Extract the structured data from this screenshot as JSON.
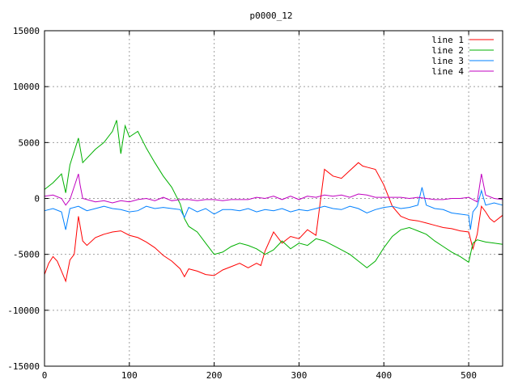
{
  "chart_data": {
    "type": "line",
    "title": "p0000_12",
    "xlabel": "",
    "ylabel": "",
    "xlim": [
      0,
      540
    ],
    "ylim": [
      -15000,
      15000
    ],
    "xticks": [
      0,
      100,
      200,
      300,
      400,
      500
    ],
    "yticks": [
      -15000,
      -10000,
      -5000,
      0,
      5000,
      10000,
      15000
    ],
    "grid": true,
    "legend_position": "top-right",
    "series": [
      {
        "name": "line 1",
        "color": "#ff0000",
        "x": [
          0,
          5,
          10,
          15,
          20,
          25,
          30,
          35,
          40,
          45,
          50,
          60,
          70,
          80,
          90,
          100,
          110,
          120,
          130,
          140,
          150,
          160,
          165,
          170,
          180,
          190,
          200,
          210,
          220,
          230,
          240,
          250,
          255,
          260,
          270,
          280,
          290,
          300,
          310,
          320,
          330,
          340,
          350,
          360,
          370,
          375,
          380,
          390,
          400,
          410,
          420,
          430,
          440,
          450,
          460,
          470,
          480,
          490,
          500,
          505,
          510,
          515,
          520,
          525,
          530,
          540
        ],
        "y": [
          -6800,
          -5800,
          -5200,
          -5600,
          -6500,
          -7400,
          -5500,
          -5000,
          -1600,
          -3800,
          -4200,
          -3500,
          -3200,
          -3000,
          -2900,
          -3300,
          -3500,
          -3900,
          -4400,
          -5100,
          -5600,
          -6300,
          -7000,
          -6300,
          -6500,
          -6800,
          -6900,
          -6400,
          -6100,
          -5800,
          -6200,
          -5800,
          -6000,
          -4700,
          -3000,
          -4000,
          -3400,
          -3600,
          -2800,
          -3300,
          2600,
          2000,
          1800,
          2500,
          3200,
          2900,
          2800,
          2600,
          1200,
          -700,
          -1600,
          -1900,
          -2000,
          -2200,
          -2400,
          -2600,
          -2700,
          -2900,
          -3000,
          -4500,
          -3200,
          -700,
          -1200,
          -1800,
          -2100,
          -1500
        ]
      },
      {
        "name": "line 2",
        "color": "#00b000",
        "x": [
          0,
          10,
          20,
          25,
          30,
          40,
          45,
          50,
          60,
          70,
          80,
          85,
          90,
          95,
          100,
          110,
          120,
          130,
          140,
          150,
          160,
          165,
          170,
          180,
          190,
          200,
          210,
          220,
          230,
          240,
          250,
          260,
          270,
          280,
          290,
          300,
          310,
          320,
          330,
          340,
          350,
          360,
          370,
          380,
          390,
          400,
          410,
          420,
          430,
          440,
          450,
          460,
          470,
          480,
          490,
          500,
          505,
          510,
          520,
          530,
          540
        ],
        "y": [
          800,
          1400,
          2200,
          500,
          3000,
          5400,
          3200,
          3600,
          4400,
          5000,
          6000,
          7000,
          4000,
          6500,
          5500,
          6000,
          4500,
          3200,
          2000,
          1000,
          -500,
          -1800,
          -2500,
          -3000,
          -4000,
          -5000,
          -4800,
          -4300,
          -4000,
          -4200,
          -4500,
          -5000,
          -4600,
          -3800,
          -4500,
          -4000,
          -4200,
          -3600,
          -3800,
          -4200,
          -4600,
          -5000,
          -5600,
          -6200,
          -5600,
          -4400,
          -3400,
          -2800,
          -2600,
          -2900,
          -3200,
          -3800,
          -4300,
          -4800,
          -5200,
          -5700,
          -4000,
          -3700,
          -3900,
          -4000,
          -4100
        ]
      },
      {
        "name": "line 3",
        "color": "#0080ff",
        "x": [
          0,
          10,
          20,
          25,
          30,
          40,
          45,
          50,
          60,
          70,
          80,
          90,
          100,
          110,
          120,
          130,
          140,
          150,
          160,
          165,
          170,
          180,
          190,
          200,
          210,
          220,
          230,
          240,
          250,
          260,
          270,
          280,
          290,
          300,
          310,
          320,
          330,
          340,
          350,
          360,
          370,
          380,
          390,
          400,
          410,
          420,
          430,
          440,
          445,
          450,
          460,
          470,
          480,
          490,
          500,
          502,
          505,
          510,
          515,
          520,
          530,
          540
        ],
        "y": [
          -1100,
          -900,
          -1200,
          -2800,
          -900,
          -700,
          -900,
          -1100,
          -900,
          -700,
          -900,
          -1000,
          -1200,
          -1100,
          -700,
          -900,
          -800,
          -900,
          -1000,
          -1700,
          -800,
          -1200,
          -900,
          -1400,
          -1000,
          -1000,
          -1100,
          -900,
          -1200,
          -1000,
          -1100,
          -900,
          -1200,
          -1000,
          -1100,
          -900,
          -700,
          -900,
          -1000,
          -700,
          -900,
          -1300,
          -1000,
          -800,
          -700,
          -900,
          -800,
          -600,
          1000,
          -600,
          -900,
          -1000,
          -1300,
          -1400,
          -1500,
          -2800,
          -1200,
          -700,
          700,
          -600,
          -400,
          -600
        ]
      },
      {
        "name": "line 4",
        "color": "#c000c0",
        "x": [
          0,
          10,
          20,
          25,
          30,
          40,
          42,
          45,
          50,
          60,
          70,
          80,
          90,
          100,
          110,
          120,
          130,
          140,
          150,
          160,
          170,
          180,
          190,
          200,
          210,
          220,
          230,
          240,
          250,
          260,
          270,
          280,
          290,
          300,
          310,
          320,
          330,
          340,
          350,
          360,
          370,
          380,
          390,
          400,
          410,
          420,
          430,
          440,
          450,
          460,
          470,
          480,
          490,
          500,
          505,
          510,
          515,
          520,
          530,
          540
        ],
        "y": [
          200,
          300,
          0,
          -600,
          -100,
          2200,
          1200,
          0,
          -100,
          -300,
          -200,
          -400,
          -200,
          -300,
          -100,
          0,
          -200,
          100,
          -200,
          -100,
          -100,
          -200,
          -100,
          -100,
          -200,
          -100,
          -100,
          -100,
          100,
          0,
          200,
          -100,
          200,
          -100,
          200,
          100,
          300,
          200,
          300,
          100,
          400,
          300,
          100,
          100,
          100,
          100,
          0,
          100,
          0,
          -100,
          -100,
          0,
          0,
          100,
          -100,
          -300,
          2200,
          300,
          0,
          -100
        ]
      }
    ]
  }
}
